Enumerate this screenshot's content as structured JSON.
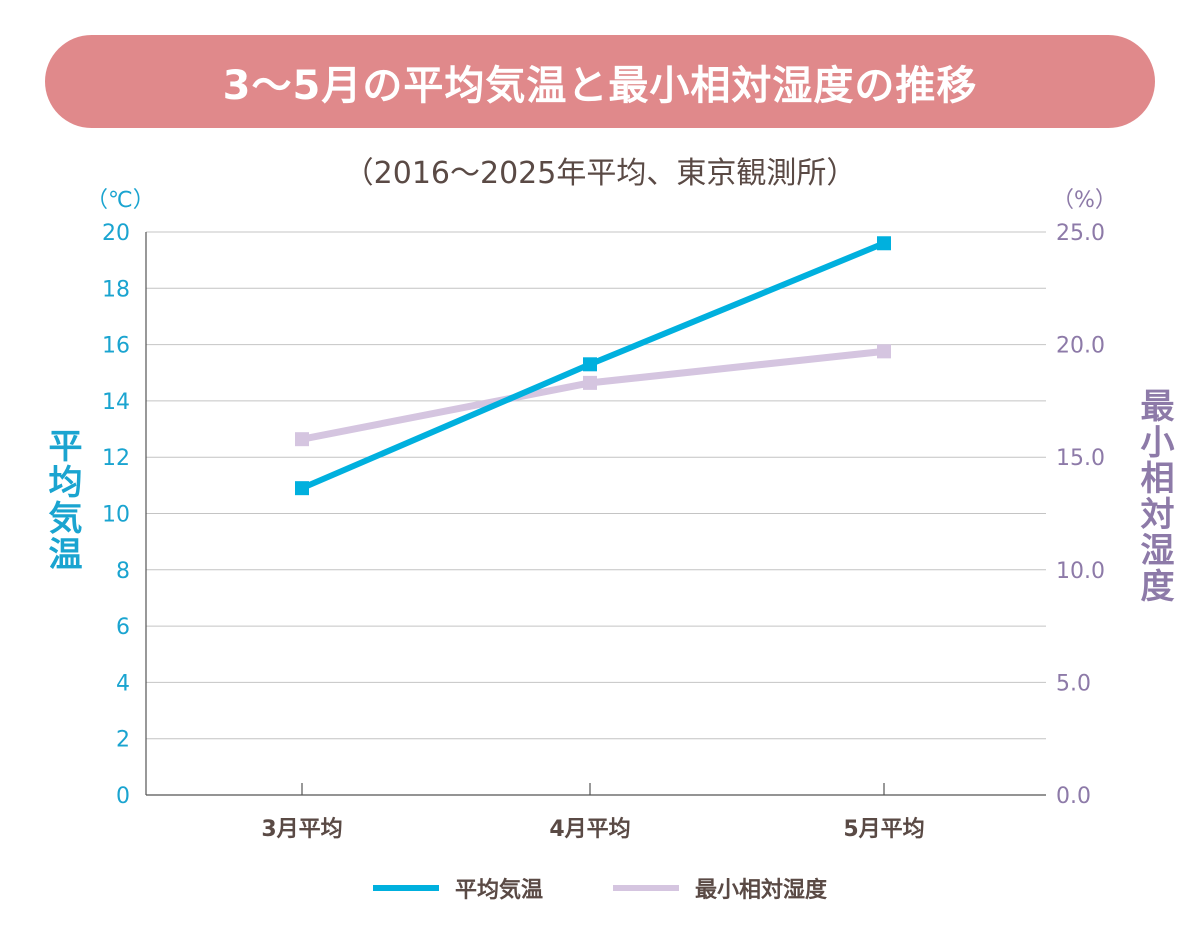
{
  "chart_data": {
    "type": "line",
    "title": "3〜5月の平均気温と最小相対湿度の推移",
    "subtitle": "（2016〜2025年平均、東京観測所）",
    "categories": [
      "3月平均",
      "4月平均",
      "5月平均"
    ],
    "y_left": {
      "label": "平均気温",
      "unit": "（℃）",
      "range": [
        0,
        20
      ],
      "ticks": [
        "0",
        "2",
        "4",
        "6",
        "8",
        "10",
        "12",
        "14",
        "16",
        "18",
        "20"
      ]
    },
    "y_right": {
      "label": "最小相対湿度",
      "unit": "（%）",
      "range": [
        0,
        25
      ],
      "ticks": [
        "0.0",
        "5.0",
        "10.0",
        "15.0",
        "20.0",
        "25.0"
      ]
    },
    "grid": true,
    "legend_position": "bottom",
    "series": [
      {
        "name": "平均気温",
        "axis": "left",
        "color": "#00b0de",
        "values": [
          10.9,
          15.3,
          19.6
        ]
      },
      {
        "name": "最小相対湿度",
        "axis": "right",
        "color": "#d5c5e0",
        "values": [
          15.8,
          18.3,
          19.7
        ]
      }
    ]
  },
  "colors": {
    "title_bg": "#e0898b",
    "left_axis": "#1aa4d0",
    "right_axis": "#8d7aa8",
    "text": "#5a4a45"
  }
}
